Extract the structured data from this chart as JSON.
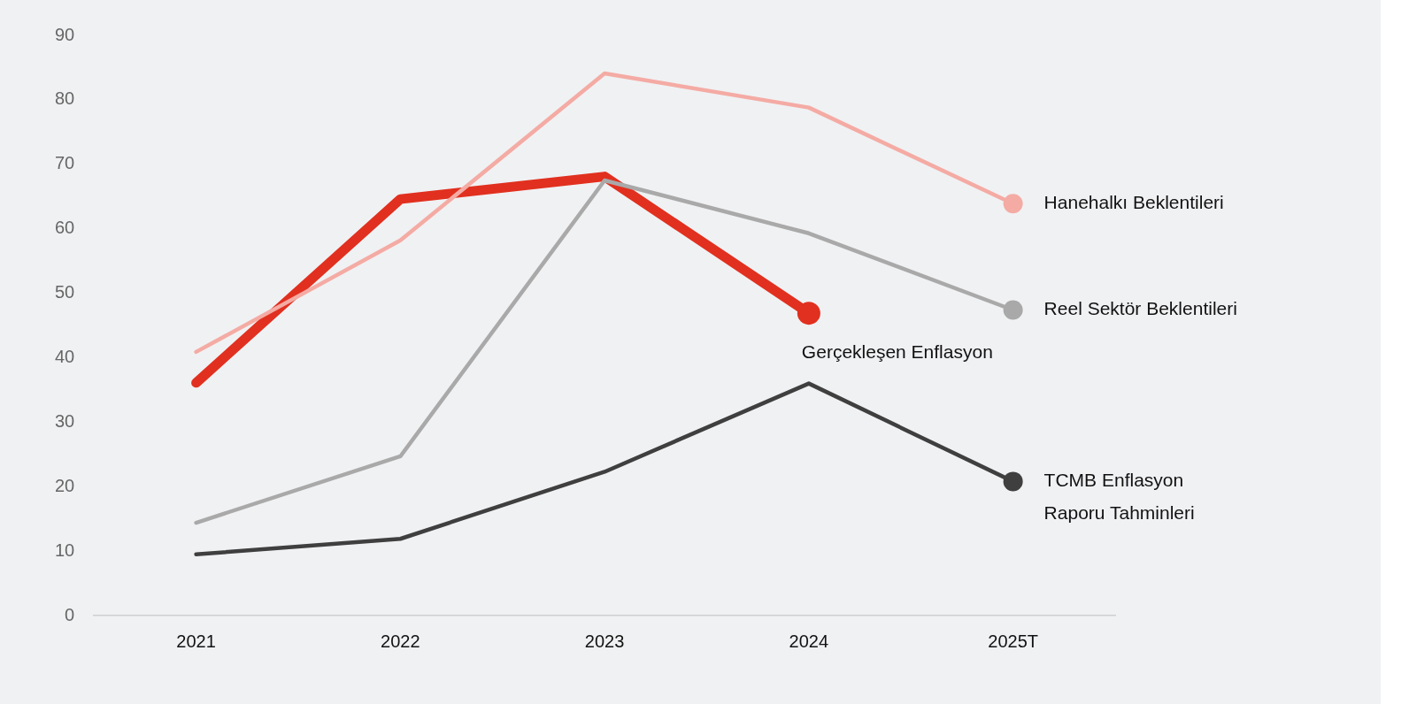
{
  "chart_data": {
    "type": "line",
    "categories": [
      "2021",
      "2022",
      "2023",
      "2024",
      "2025T"
    ],
    "series": [
      {
        "name": "Hanehalkı Beklentileri",
        "color": "#f4aba4",
        "values": [
          40.9,
          58.2,
          84.1,
          78.8,
          63.9
        ]
      },
      {
        "name": "Reel Sektör Beklentileri",
        "color": "#a9a9a9",
        "values": [
          14.4,
          24.7,
          67.5,
          59.3,
          47.4
        ]
      },
      {
        "name": "Gerçekleşen Enflasyon",
        "color": "#e1301f",
        "values": [
          36.1,
          64.6,
          68.1,
          46.9,
          null
        ]
      },
      {
        "name": "TCMB Enflasyon\nRaporu Tahminleri",
        "color": "#3f3f3f",
        "values": [
          9.5,
          11.9,
          22.3,
          36.0,
          20.8
        ]
      }
    ],
    "ylim": [
      0,
      90
    ],
    "yticks": [
      0,
      10,
      20,
      30,
      40,
      50,
      60,
      70,
      80,
      90
    ],
    "grid": false,
    "legend": false,
    "line_style": "solid"
  }
}
